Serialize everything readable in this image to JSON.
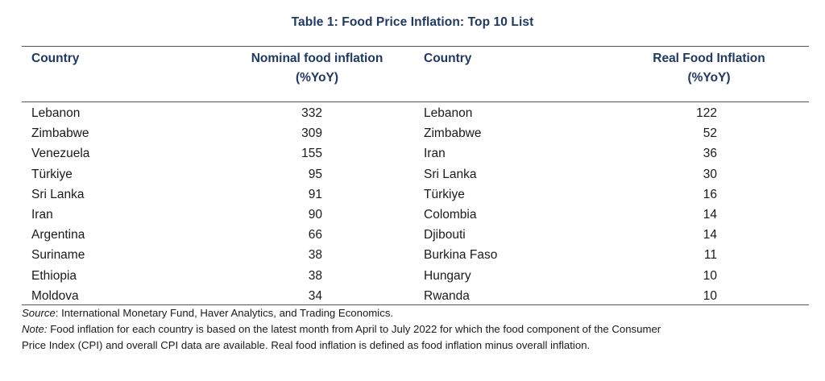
{
  "table": {
    "title": "Table 1: Food Price Inflation: Top 10 List",
    "headers": {
      "country_left": "Country",
      "nominal_line1": "Nominal food inflation",
      "nominal_line2": "(%YoY)",
      "country_right": "Country",
      "real_line1": "Real Food Inflation",
      "real_line2": "(%YoY)"
    },
    "rows": [
      {
        "country_nominal": "Lebanon",
        "nominal": "332",
        "country_real": "Lebanon",
        "real": "122"
      },
      {
        "country_nominal": "Zimbabwe",
        "nominal": "309",
        "country_real": "Zimbabwe",
        "real": "52"
      },
      {
        "country_nominal": "Venezuela",
        "nominal": "155",
        "country_real": "Iran",
        "real": "36"
      },
      {
        "country_nominal": "Türkiye",
        "nominal": "95",
        "country_real": "Sri Lanka",
        "real": "30"
      },
      {
        "country_nominal": "Sri Lanka",
        "nominal": "91",
        "country_real": "Türkiye",
        "real": "16"
      },
      {
        "country_nominal": "Iran",
        "nominal": "90",
        "country_real": "Colombia",
        "real": "14"
      },
      {
        "country_nominal": "Argentina",
        "nominal": "66",
        "country_real": "Djibouti",
        "real": "14"
      },
      {
        "country_nominal": "Suriname",
        "nominal": "38",
        "country_real": "Burkina Faso",
        "real": "11"
      },
      {
        "country_nominal": "Ethiopia",
        "nominal": "38",
        "country_real": "Hungary",
        "real": "10"
      },
      {
        "country_nominal": "Moldova",
        "nominal": "34",
        "country_real": "Rwanda",
        "real": "10"
      }
    ]
  },
  "footnotes": {
    "source_label": "Source",
    "source_text": ": International Monetary Fund, Haver Analytics, and Trading Economics.",
    "note_label": "Note:",
    "note_text_line1": " Food inflation for each country is based on the latest month from April to July 2022 for which the food component of the Consumer",
    "note_text_line2": "Price Index (CPI) and overall CPI data are available. Real food inflation is defined as food inflation minus overall inflation."
  },
  "colors": {
    "heading": "#1f3864",
    "body_text": "#1a1a1a",
    "rule": "#555555"
  }
}
